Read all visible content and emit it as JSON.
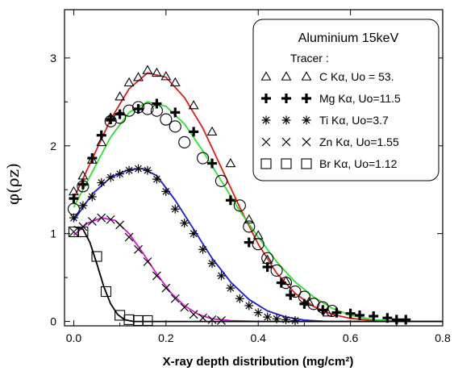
{
  "chart_data": {
    "type": "scatter",
    "title": "",
    "xlabel": "X-ray depth distribution (mg/cm²)",
    "ylabel": "φ(ρz)",
    "xlim": [
      -0.02,
      0.8
    ],
    "ylim": [
      -0.05,
      3.55
    ],
    "x_ticks": [
      0.0,
      0.2,
      0.4,
      0.6,
      0.8
    ],
    "x_tick_labels": [
      "0.0",
      "0.2",
      "0.4",
      "0.6",
      "0.8"
    ],
    "y_ticks": [
      0,
      1,
      2,
      3
    ],
    "y_tick_labels": [
      "0",
      "1",
      "2",
      "3"
    ],
    "grid": false,
    "legend": {
      "placement": "top-right",
      "title": "Aluminium 15keV",
      "subtitle": "Tracer :",
      "entries": [
        {
          "marker": "triangle",
          "label": "C Kα,   Uo = 53."
        },
        {
          "marker": "plus",
          "label": "Mg Kα, Uo=11.5"
        },
        {
          "marker": "asterisk",
          "label": "Ti Kα,   Uo=3.7"
        },
        {
          "marker": "cross",
          "label": "Zn Kα,   Uo=1.55"
        },
        {
          "marker": "square",
          "label": "Br Kα,   Uo=1.12"
        }
      ]
    },
    "series": [
      {
        "marker": "triangle",
        "curve_color": "#e11a1a",
        "points": [
          [
            0.0,
            1.48
          ],
          [
            0.02,
            1.66
          ],
          [
            0.04,
            1.84
          ],
          [
            0.06,
            2.04
          ],
          [
            0.08,
            2.32
          ],
          [
            0.1,
            2.56
          ],
          [
            0.12,
            2.72
          ],
          [
            0.14,
            2.78
          ],
          [
            0.16,
            2.86
          ],
          [
            0.18,
            2.83
          ],
          [
            0.2,
            2.79
          ],
          [
            0.22,
            2.72
          ],
          [
            0.26,
            2.46
          ],
          [
            0.3,
            2.16
          ],
          [
            0.34,
            1.8
          ],
          [
            0.38,
            1.16
          ],
          [
            0.4,
            0.98
          ],
          [
            0.42,
            0.7
          ],
          [
            0.46,
            0.46
          ],
          [
            0.51,
            0.22
          ],
          [
            0.55,
            0.1
          ]
        ],
        "curve": [
          [
            0.0,
            1.4
          ],
          [
            0.04,
            1.85
          ],
          [
            0.08,
            2.3
          ],
          [
            0.12,
            2.65
          ],
          [
            0.16,
            2.83
          ],
          [
            0.2,
            2.78
          ],
          [
            0.24,
            2.55
          ],
          [
            0.28,
            2.2
          ],
          [
            0.32,
            1.75
          ],
          [
            0.36,
            1.3
          ],
          [
            0.4,
            0.88
          ],
          [
            0.44,
            0.55
          ],
          [
            0.48,
            0.32
          ],
          [
            0.52,
            0.17
          ],
          [
            0.56,
            0.08
          ],
          [
            0.6,
            0.035
          ],
          [
            0.65,
            0.01
          ],
          [
            0.72,
            0.0
          ],
          [
            0.8,
            0.0
          ]
        ]
      },
      {
        "marker": "plus",
        "curve_color": "#2ee02e",
        "points": [
          [
            0.0,
            1.4
          ],
          [
            0.02,
            1.56
          ],
          [
            0.04,
            1.86
          ],
          [
            0.06,
            2.12
          ],
          [
            0.08,
            2.3
          ],
          [
            0.1,
            2.36
          ],
          [
            0.14,
            2.42
          ],
          [
            0.18,
            2.48
          ],
          [
            0.22,
            2.38
          ],
          [
            0.26,
            2.16
          ],
          [
            0.3,
            1.8
          ],
          [
            0.34,
            1.38
          ],
          [
            0.38,
            0.9
          ],
          [
            0.42,
            0.62
          ],
          [
            0.45,
            0.44
          ],
          [
            0.47,
            0.3
          ],
          [
            0.5,
            0.2
          ],
          [
            0.54,
            0.13
          ],
          [
            0.57,
            0.1
          ],
          [
            0.6,
            0.09
          ],
          [
            0.62,
            0.07
          ],
          [
            0.65,
            0.06
          ],
          [
            0.68,
            0.04
          ],
          [
            0.7,
            0.02
          ],
          [
            0.72,
            0.02
          ]
        ],
        "curve": [
          [
            0.0,
            1.3
          ],
          [
            0.04,
            1.7
          ],
          [
            0.08,
            2.1
          ],
          [
            0.12,
            2.38
          ],
          [
            0.16,
            2.5
          ],
          [
            0.2,
            2.45
          ],
          [
            0.24,
            2.25
          ],
          [
            0.28,
            1.94
          ],
          [
            0.32,
            1.6
          ],
          [
            0.36,
            1.26
          ],
          [
            0.4,
            0.96
          ],
          [
            0.44,
            0.68
          ],
          [
            0.48,
            0.45
          ],
          [
            0.52,
            0.28
          ],
          [
            0.56,
            0.15
          ],
          [
            0.6,
            0.07
          ],
          [
            0.65,
            0.02
          ],
          [
            0.72,
            0.0
          ],
          [
            0.8,
            0.0
          ]
        ]
      },
      {
        "marker": "circle",
        "curve_color": null,
        "points": [
          [
            0.0,
            1.28
          ],
          [
            0.02,
            1.54
          ],
          [
            0.08,
            2.28
          ],
          [
            0.1,
            2.32
          ],
          [
            0.12,
            2.4
          ],
          [
            0.14,
            2.44
          ],
          [
            0.16,
            2.42
          ],
          [
            0.18,
            2.4
          ],
          [
            0.2,
            2.3
          ],
          [
            0.22,
            2.22
          ],
          [
            0.24,
            2.04
          ],
          [
            0.28,
            1.86
          ],
          [
            0.32,
            1.6
          ],
          [
            0.36,
            1.32
          ],
          [
            0.38,
            1.08
          ],
          [
            0.4,
            0.88
          ],
          [
            0.42,
            0.72
          ],
          [
            0.44,
            0.58
          ],
          [
            0.46,
            0.44
          ],
          [
            0.48,
            0.34
          ],
          [
            0.5,
            0.28
          ],
          [
            0.52,
            0.2
          ],
          [
            0.54,
            0.16
          ],
          [
            0.56,
            0.12
          ]
        ],
        "curve": []
      },
      {
        "marker": "asterisk",
        "curve_color": "#1a1ad8",
        "points": [
          [
            0.0,
            1.18
          ],
          [
            0.02,
            1.32
          ],
          [
            0.04,
            1.42
          ],
          [
            0.06,
            1.58
          ],
          [
            0.08,
            1.64
          ],
          [
            0.1,
            1.68
          ],
          [
            0.12,
            1.72
          ],
          [
            0.14,
            1.74
          ],
          [
            0.16,
            1.72
          ],
          [
            0.18,
            1.62
          ],
          [
            0.2,
            1.48
          ],
          [
            0.22,
            1.28
          ],
          [
            0.24,
            1.12
          ],
          [
            0.26,
            1.0
          ],
          [
            0.28,
            0.82
          ],
          [
            0.3,
            0.66
          ],
          [
            0.32,
            0.52
          ],
          [
            0.34,
            0.38
          ],
          [
            0.36,
            0.26
          ],
          [
            0.38,
            0.18
          ],
          [
            0.4,
            0.1
          ],
          [
            0.42,
            0.05
          ],
          [
            0.44,
            0.03
          ],
          [
            0.46,
            0.02
          ],
          [
            0.48,
            0.01
          ]
        ],
        "curve": [
          [
            0.0,
            1.15
          ],
          [
            0.04,
            1.45
          ],
          [
            0.08,
            1.64
          ],
          [
            0.12,
            1.73
          ],
          [
            0.15,
            1.74
          ],
          [
            0.18,
            1.66
          ],
          [
            0.22,
            1.38
          ],
          [
            0.26,
            1.05
          ],
          [
            0.3,
            0.72
          ],
          [
            0.34,
            0.45
          ],
          [
            0.38,
            0.25
          ],
          [
            0.42,
            0.12
          ],
          [
            0.46,
            0.05
          ],
          [
            0.5,
            0.015
          ],
          [
            0.55,
            0.0
          ],
          [
            0.8,
            0.0
          ]
        ]
      },
      {
        "marker": "cross",
        "curve_color": "#d11ad1",
        "points": [
          [
            0.0,
            1.02
          ],
          [
            0.02,
            1.08
          ],
          [
            0.04,
            1.14
          ],
          [
            0.06,
            1.18
          ],
          [
            0.08,
            1.16
          ],
          [
            0.1,
            1.1
          ],
          [
            0.12,
            0.96
          ],
          [
            0.14,
            0.82
          ],
          [
            0.16,
            0.68
          ],
          [
            0.18,
            0.52
          ],
          [
            0.2,
            0.38
          ],
          [
            0.22,
            0.26
          ],
          [
            0.24,
            0.16
          ],
          [
            0.26,
            0.08
          ],
          [
            0.28,
            0.04
          ],
          [
            0.3,
            0.02
          ],
          [
            0.32,
            0.01
          ]
        ],
        "curve": [
          [
            0.0,
            0.98
          ],
          [
            0.03,
            1.12
          ],
          [
            0.06,
            1.18
          ],
          [
            0.09,
            1.15
          ],
          [
            0.12,
            1.0
          ],
          [
            0.15,
            0.78
          ],
          [
            0.18,
            0.54
          ],
          [
            0.21,
            0.33
          ],
          [
            0.24,
            0.18
          ],
          [
            0.27,
            0.08
          ],
          [
            0.3,
            0.03
          ],
          [
            0.34,
            0.01
          ],
          [
            0.4,
            0.0
          ],
          [
            0.8,
            0.0
          ]
        ]
      },
      {
        "marker": "square",
        "curve_color": "#000000",
        "points": [
          [
            0.0,
            1.02
          ],
          [
            0.02,
            1.02
          ],
          [
            0.05,
            0.74
          ],
          [
            0.07,
            0.34
          ],
          [
            0.1,
            0.07
          ],
          [
            0.12,
            0.02
          ],
          [
            0.14,
            0.01
          ],
          [
            0.16,
            0.01
          ]
        ],
        "curve": [
          [
            0.0,
            1.08
          ],
          [
            0.02,
            1.05
          ],
          [
            0.035,
            0.9
          ],
          [
            0.05,
            0.66
          ],
          [
            0.065,
            0.4
          ],
          [
            0.08,
            0.2
          ],
          [
            0.095,
            0.08
          ],
          [
            0.11,
            0.02
          ],
          [
            0.13,
            0.0
          ],
          [
            0.8,
            0.0
          ]
        ]
      }
    ]
  }
}
